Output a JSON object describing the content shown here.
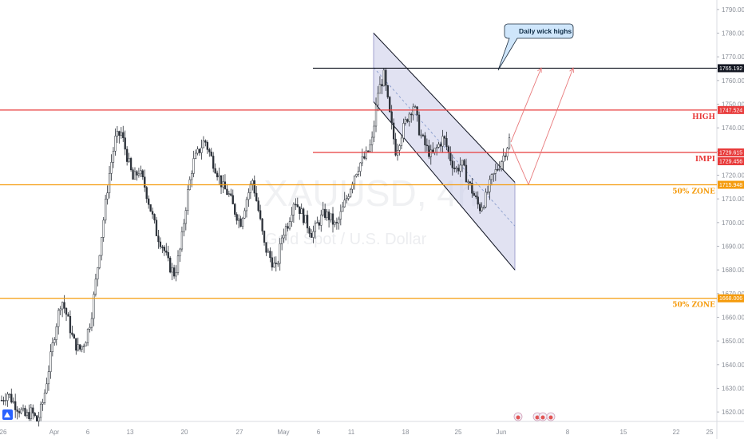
{
  "watermark": {
    "symbol": "XAUUSD, 4h",
    "name": "Gold Spot / U.S. Dollar"
  },
  "colors": {
    "up": "#2b3038",
    "down": "#2b3038",
    "red": "#e83b3b",
    "orange": "#f59b0c",
    "black": "#131722",
    "channel_fill": "#c9cbe8",
    "channel_edge": "#8e90c4",
    "arrow": "#e8787a",
    "callout_fill": "#cfe6fb",
    "callout_edge": "#1b2b3c"
  },
  "chart_data": {
    "type": "candlestick",
    "y_range": [
      1616,
      1794
    ],
    "y_ticks": [
      "1790.000",
      "1780.000",
      "1770.000",
      "1760.000",
      "1750.000",
      "1740.000",
      "1730.000",
      "1720.000",
      "1710.000",
      "1700.000",
      "1690.000",
      "1680.000",
      "1670.000",
      "1660.000",
      "1650.000",
      "1640.000",
      "1630.000",
      "1620.000"
    ],
    "y_tick_values": [
      1790,
      1780,
      1770,
      1760,
      1750,
      1740,
      1730,
      1720,
      1710,
      1700,
      1690,
      1680,
      1670,
      1660,
      1650,
      1640,
      1630,
      1620
    ],
    "x_labels": [
      "26",
      "Apr",
      "6",
      "13",
      "20",
      "27",
      "May",
      "6",
      "11",
      "18",
      "25",
      "Jun",
      "8",
      "15",
      "22",
      "25"
    ],
    "horizontal_levels": [
      {
        "value": 1765.192,
        "label": "",
        "price_label": "1765.192",
        "color": "black"
      },
      {
        "value": 1747.524,
        "label": "HIGH",
        "price_label": "1747.524",
        "color": "red"
      },
      {
        "value": 1729.615,
        "label": "IMPI",
        "price_label": "1729.615",
        "color": "red"
      },
      {
        "value": 1715.948,
        "label": "50% ZONE",
        "price_label": "1715.948",
        "color": "orange"
      },
      {
        "value": 1668.006,
        "label": "50% ZONE",
        "price_label": "1668.006",
        "color": "orange"
      }
    ],
    "extra_price_labels": [
      {
        "value": 1729.456,
        "price_label": "1729.456"
      }
    ],
    "annotation": "Daily wick highs",
    "channel": {
      "upper_start": 1780,
      "upper_end": 1717,
      "lower_start": 1751,
      "lower_end": 1680
    },
    "path_closes": [
      1625,
      1628,
      1624,
      1621,
      1618,
      1620,
      1616,
      1625,
      1640,
      1655,
      1668,
      1660,
      1650,
      1646,
      1650,
      1660,
      1680,
      1700,
      1720,
      1735,
      1738,
      1728,
      1718,
      1722,
      1715,
      1705,
      1695,
      1690,
      1682,
      1678,
      1690,
      1710,
      1725,
      1730,
      1735,
      1728,
      1722,
      1715,
      1712,
      1705,
      1700,
      1710,
      1718,
      1705,
      1690,
      1685,
      1680,
      1695,
      1700,
      1710,
      1705,
      1700,
      1695,
      1700,
      1704,
      1702,
      1698,
      1705,
      1712,
      1720,
      1725,
      1728,
      1734,
      1755,
      1762,
      1745,
      1730,
      1738,
      1745,
      1750,
      1738,
      1732,
      1728,
      1732,
      1736,
      1728,
      1722,
      1725,
      1718,
      1712,
      1706,
      1710,
      1718,
      1723,
      1728,
      1735
    ]
  }
}
